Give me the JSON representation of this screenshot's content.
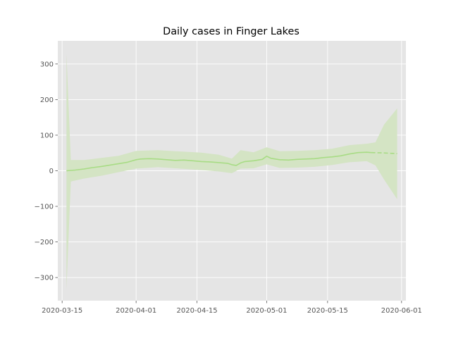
{
  "chart_data": {
    "type": "line",
    "title": "Daily cases in Finger Lakes",
    "xlabel": "",
    "ylabel": "",
    "x_axis": "date",
    "xlim": [
      "2020-03-14",
      "2020-06-02"
    ],
    "ylim": [
      -365,
      365
    ],
    "grid": true,
    "legend": "none",
    "x_ticks": [
      "2020-03-15",
      "2020-04-01",
      "2020-04-15",
      "2020-05-01",
      "2020-05-15",
      "2020-06-01"
    ],
    "y_ticks": [
      300,
      200,
      100,
      0,
      -100,
      -200,
      -300
    ],
    "y_tick_labels": [
      "300",
      "200",
      "100",
      "0",
      "−100",
      "−200",
      "−300"
    ],
    "colors": {
      "background": "#e5e5e5",
      "grid": "#ffffff",
      "band": "#d4e4c4",
      "line": "#a8dc85",
      "tick_label": "#555555"
    },
    "series": [
      {
        "style": "solid",
        "points": [
          [
            "2020-03-16",
            0
          ],
          [
            "2020-03-18",
            2
          ],
          [
            "2020-03-20",
            5
          ],
          [
            "2020-03-22",
            9
          ],
          [
            "2020-03-24",
            12
          ],
          [
            "2020-03-26",
            16
          ],
          [
            "2020-03-28",
            20
          ],
          [
            "2020-03-30",
            24
          ],
          [
            "2020-04-01",
            31
          ],
          [
            "2020-04-02",
            33
          ],
          [
            "2020-04-04",
            34
          ],
          [
            "2020-04-06",
            33
          ],
          [
            "2020-04-08",
            31
          ],
          [
            "2020-04-10",
            29
          ],
          [
            "2020-04-12",
            30
          ],
          [
            "2020-04-14",
            28
          ],
          [
            "2020-04-16",
            26
          ],
          [
            "2020-04-18",
            25
          ],
          [
            "2020-04-20",
            23
          ],
          [
            "2020-04-22",
            21
          ],
          [
            "2020-04-23",
            17
          ],
          [
            "2020-04-24",
            15
          ],
          [
            "2020-04-25",
            22
          ],
          [
            "2020-04-26",
            26
          ],
          [
            "2020-04-28",
            28
          ],
          [
            "2020-04-30",
            32
          ],
          [
            "2020-05-01",
            41
          ],
          [
            "2020-05-02",
            35
          ],
          [
            "2020-05-04",
            31
          ],
          [
            "2020-05-06",
            30
          ],
          [
            "2020-05-08",
            32
          ],
          [
            "2020-05-10",
            33
          ],
          [
            "2020-05-12",
            34
          ],
          [
            "2020-05-14",
            37
          ],
          [
            "2020-05-16",
            39
          ],
          [
            "2020-05-18",
            42
          ],
          [
            "2020-05-20",
            47
          ],
          [
            "2020-05-22",
            51
          ],
          [
            "2020-05-24",
            52
          ],
          [
            "2020-05-25",
            51
          ]
        ]
      },
      {
        "style": "dashed",
        "points": [
          [
            "2020-05-25",
            51
          ],
          [
            "2020-05-28",
            50
          ],
          [
            "2020-05-31",
            48
          ]
        ]
      }
    ],
    "band": [
      [
        "2020-03-16",
        330,
        -335
      ],
      [
        "2020-03-17",
        30,
        -30
      ],
      [
        "2020-03-20",
        30,
        -22
      ],
      [
        "2020-03-24",
        36,
        -14
      ],
      [
        "2020-03-28",
        42,
        -4
      ],
      [
        "2020-04-01",
        56,
        6
      ],
      [
        "2020-04-06",
        58,
        10
      ],
      [
        "2020-04-10",
        55,
        7
      ],
      [
        "2020-04-16",
        51,
        2
      ],
      [
        "2020-04-20",
        45,
        -2
      ],
      [
        "2020-04-23",
        34,
        -7
      ],
      [
        "2020-04-25",
        58,
        6
      ],
      [
        "2020-04-28",
        52,
        7
      ],
      [
        "2020-05-01",
        66,
        18
      ],
      [
        "2020-05-04",
        55,
        8
      ],
      [
        "2020-05-08",
        56,
        9
      ],
      [
        "2020-05-12",
        58,
        11
      ],
      [
        "2020-05-16",
        62,
        16
      ],
      [
        "2020-05-20",
        72,
        24
      ],
      [
        "2020-05-24",
        76,
        27
      ],
      [
        "2020-05-26",
        80,
        15
      ],
      [
        "2020-05-28",
        130,
        -25
      ],
      [
        "2020-05-31",
        175,
        -80
      ]
    ]
  }
}
